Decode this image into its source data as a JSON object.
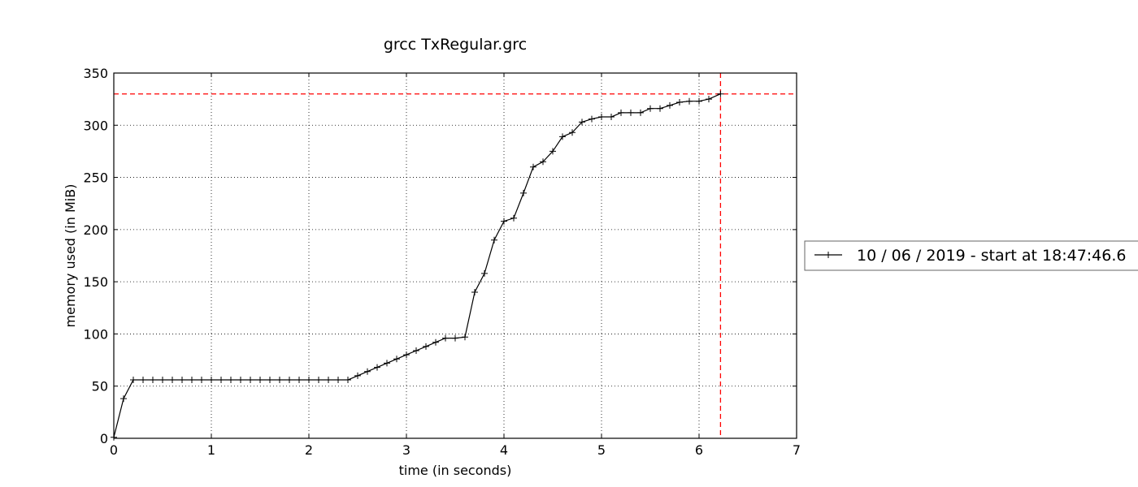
{
  "chart_data": {
    "type": "line",
    "title": "grcc TxRegular.grc",
    "xlabel": "time (in seconds)",
    "ylabel": "memory used (in MiB)",
    "xlim": [
      0,
      7
    ],
    "ylim": [
      0,
      350
    ],
    "xticks": [
      "0",
      "1",
      "2",
      "3",
      "4",
      "5",
      "6",
      "7"
    ],
    "yticks": [
      "0",
      "50",
      "100",
      "150",
      "200",
      "250",
      "300",
      "350"
    ],
    "grid": true,
    "legend_position": "right, outside plot",
    "series": [
      {
        "name": "10 / 06 / 2019 - start at 18:47:46.6",
        "color": "#000000",
        "marker": "plus",
        "x": [
          0,
          0.1,
          0.2,
          0.3,
          0.4,
          0.5,
          0.6,
          0.7,
          0.8,
          0.9,
          1.0,
          1.1,
          1.2,
          1.3,
          1.4,
          1.5,
          1.6,
          1.7,
          1.8,
          1.9,
          2.0,
          2.1,
          2.2,
          2.3,
          2.4,
          2.5,
          2.6,
          2.7,
          2.8,
          2.9,
          3.0,
          3.1,
          3.2,
          3.3,
          3.4,
          3.5,
          3.6,
          3.7,
          3.8,
          3.9,
          4.0,
          4.1,
          4.2,
          4.3,
          4.4,
          4.5,
          4.6,
          4.7,
          4.8,
          4.9,
          5.0,
          5.1,
          5.2,
          5.3,
          5.4,
          5.5,
          5.6,
          5.7,
          5.8,
          5.9,
          6.0,
          6.1,
          6.22
        ],
        "y": [
          1,
          38,
          56,
          56,
          56,
          56,
          56,
          56,
          56,
          56,
          56,
          56,
          56,
          56,
          56,
          56,
          56,
          56,
          56,
          56,
          56,
          56,
          56,
          56,
          56,
          60,
          64,
          68,
          72,
          76,
          80,
          84,
          88,
          92,
          96,
          96,
          97,
          140,
          158,
          190,
          208,
          211,
          235,
          260,
          265,
          275,
          289,
          293,
          303,
          306,
          308,
          308,
          312,
          312,
          312,
          316,
          316,
          319,
          322,
          323,
          323,
          325,
          330
        ]
      }
    ],
    "reference_lines": {
      "color": "#ff0000",
      "horizontal_y": 330,
      "vertical_x": 6.22
    }
  }
}
